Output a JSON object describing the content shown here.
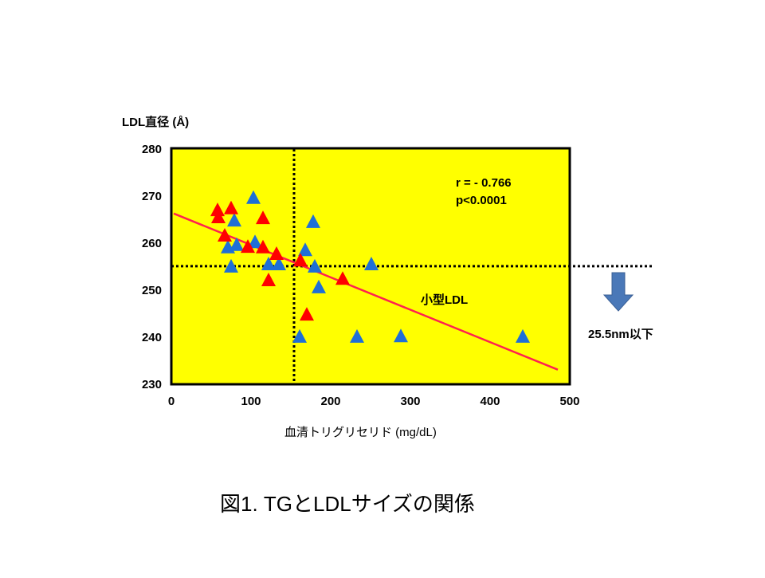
{
  "chart_data": {
    "type": "scatter",
    "title": "",
    "caption": "図1. TGとLDLサイズの関係",
    "xlabel": "血清トリグリセリド (mg/dL)",
    "ylabel": "LDL直径 (Å)",
    "xlim": [
      0,
      500
    ],
    "ylim": [
      230,
      280
    ],
    "xticks": [
      0,
      100,
      200,
      300,
      400,
      500
    ],
    "yticks": [
      230,
      240,
      250,
      260,
      270,
      280
    ],
    "grid": false,
    "background_color": "#ffff00",
    "series": [
      {
        "color": "#1f6fd6",
        "marker": "triangle",
        "points": [
          [
            103,
            269.7
          ],
          [
            79,
            264.9
          ],
          [
            178,
            264.6
          ],
          [
            71,
            259.2
          ],
          [
            82,
            259.7
          ],
          [
            105,
            260.3
          ],
          [
            168,
            258.6
          ],
          [
            75,
            255.1
          ],
          [
            122,
            255.6
          ],
          [
            135,
            255.6
          ],
          [
            180,
            255.1
          ],
          [
            185,
            250.7
          ],
          [
            251,
            255.6
          ],
          [
            161,
            240.2
          ],
          [
            233,
            240.2
          ],
          [
            288,
            240.3
          ],
          [
            441,
            240.2
          ]
        ]
      },
      {
        "color": "#ff0000",
        "marker": "triangle",
        "points": [
          [
            58,
            267.1
          ],
          [
            59,
            265.6
          ],
          [
            75,
            267.5
          ],
          [
            115,
            265.4
          ],
          [
            67,
            261.7
          ],
          [
            96,
            259.3
          ],
          [
            115,
            259.2
          ],
          [
            132,
            257.8
          ],
          [
            162,
            256.4
          ],
          [
            122,
            252.2
          ],
          [
            215,
            252.5
          ],
          [
            170,
            244.9
          ]
        ]
      }
    ],
    "regression_line": {
      "color": "#ff2050",
      "from": [
        3,
        266.3
      ],
      "to": [
        485,
        233.1
      ]
    },
    "reference_lines": {
      "vertical_x": 154,
      "horizontal_y": 255.1
    },
    "annotations": {
      "r": "r = - 0.766",
      "p": "p<0.0001",
      "small_ldl": "小型LDL",
      "threshold": "25.5nm以下"
    },
    "arrow_color": "#4a78b8"
  }
}
